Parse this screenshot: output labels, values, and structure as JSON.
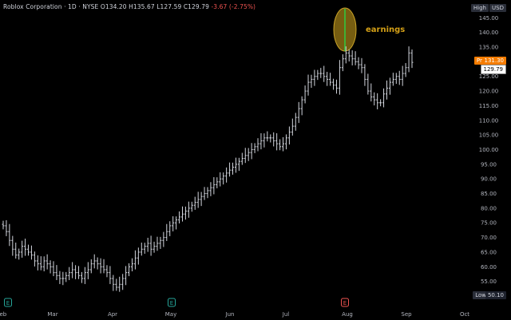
{
  "header": {
    "symbol_line": "Roblox Corporation · 1D · NYSE",
    "ohlc": "O134.20  H135.67  L127.59  C129.79",
    "change": "-3.67 (-2.75%)"
  },
  "tags": {
    "high_label": "High",
    "currency": "USD",
    "low_label": "Low",
    "low_value": "50.10",
    "pre_label": "Pre",
    "pre_value": "131.30",
    "last_value": "129.79"
  },
  "annotation": "earnings",
  "colors": {
    "bars": "#d1d4dc",
    "earnings_fill": "#8b6d14",
    "earnings_line": "#2ecc40",
    "event_green": "#26a69a",
    "event_red": "#ef5350",
    "pre_orange": "#f57c00"
  },
  "chart_data": {
    "type": "ohlc",
    "title": "",
    "ylim": [
      50,
      147
    ],
    "y_ticks": [
      55,
      60,
      65,
      70,
      75,
      80,
      85,
      90,
      95,
      100,
      105,
      110,
      115,
      120,
      125,
      130,
      135,
      140,
      145
    ],
    "x_labels": [
      "Feb",
      "Mar",
      "Apr",
      "May",
      "Jun",
      "Jul",
      "Aug",
      "Sep",
      "Oct"
    ],
    "events": [
      {
        "label": "E",
        "month": "Feb",
        "color": "green"
      },
      {
        "label": "E",
        "month": "May",
        "color": "green"
      },
      {
        "label": "E",
        "month": "Aug",
        "color": "red"
      }
    ],
    "closes": [
      74,
      72,
      69,
      66,
      64,
      65,
      67,
      66,
      65,
      64,
      62,
      61,
      60,
      62,
      61,
      60,
      58,
      57,
      56,
      56,
      57,
      58,
      59,
      58,
      57,
      56,
      58,
      59,
      61,
      62,
      61,
      60,
      59,
      58,
      56,
      54,
      53,
      54,
      56,
      58,
      60,
      61,
      63,
      65,
      66,
      67,
      68,
      66,
      67,
      68,
      69,
      70,
      72,
      74,
      75,
      76,
      77,
      78,
      79,
      80,
      81,
      82,
      83,
      84,
      85,
      86,
      87,
      88,
      89,
      90,
      91,
      92,
      93,
      94,
      95,
      96,
      97,
      98,
      99,
      100,
      101,
      102,
      103,
      104,
      104,
      104,
      103,
      102,
      101,
      102,
      104,
      106,
      108,
      111,
      114,
      117,
      120,
      123,
      124,
      125,
      126,
      126,
      125,
      124,
      123,
      122,
      121,
      128,
      131,
      133,
      132,
      131,
      130,
      129,
      128,
      124,
      120,
      118,
      117,
      116,
      116,
      119,
      121,
      123,
      124,
      125,
      124,
      126,
      128,
      133,
      129.79
    ]
  }
}
